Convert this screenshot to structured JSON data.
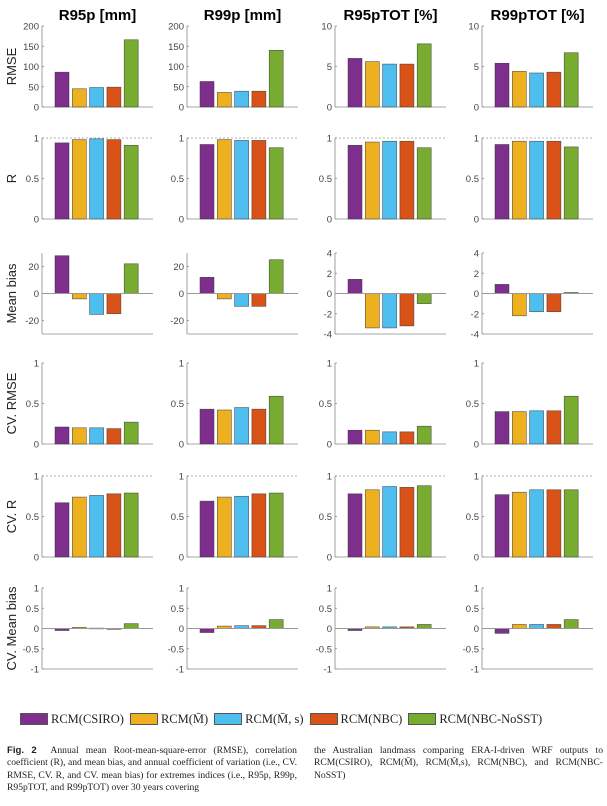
{
  "chart_data": {
    "type": "bar",
    "layout": "grid 6 rows x 4 columns",
    "columns": [
      "R95p [mm]",
      "R99p [mm]",
      "R95pTOT [%]",
      "R99pTOT [%]"
    ],
    "models": [
      "RCM(CSIRO)",
      "RCM(M̄)",
      "RCM(M̄, s)",
      "RCM(NBC)",
      "RCM(NBC-NoSST)"
    ],
    "colors": [
      "#7e2f8e",
      "#edb120",
      "#4dbeee",
      "#d95319",
      "#77ac30"
    ],
    "rows": [
      {
        "ylabel": "RMSE",
        "ylims": [
          [
            0,
            200
          ],
          [
            0,
            200
          ],
          [
            0,
            10
          ],
          [
            0,
            10
          ]
        ],
        "ticks": [
          [
            "0",
            "50",
            "100",
            "150",
            "200"
          ],
          [
            "0",
            "50",
            "100",
            "150",
            "200"
          ],
          [
            "0",
            "5",
            "10"
          ],
          [
            "0",
            "5",
            "10"
          ]
        ],
        "tick_values": [
          [
            0,
            50,
            100,
            150,
            200
          ],
          [
            0,
            50,
            100,
            150,
            200
          ],
          [
            0,
            5,
            10
          ],
          [
            0,
            5,
            10
          ]
        ],
        "ref_line": null,
        "values": [
          [
            86,
            45,
            48,
            49,
            166
          ],
          [
            63,
            36,
            39,
            39,
            140
          ],
          [
            6.0,
            5.6,
            5.3,
            5.3,
            7.8
          ],
          [
            5.4,
            4.4,
            4.2,
            4.3,
            6.7
          ]
        ]
      },
      {
        "ylabel": "R",
        "ylims": [
          [
            0,
            1
          ],
          [
            0,
            1
          ],
          [
            0,
            1
          ],
          [
            0,
            1
          ]
        ],
        "ticks": [
          [
            "0",
            "0.5",
            "1"
          ],
          [
            "0",
            "0.5",
            "1"
          ],
          [
            "0",
            "0.5",
            "1"
          ],
          [
            "0",
            "0.5",
            "1"
          ]
        ],
        "tick_values": [
          [
            0,
            0.5,
            1
          ],
          [
            0,
            0.5,
            1
          ],
          [
            0,
            0.5,
            1
          ],
          [
            0,
            0.5,
            1
          ]
        ],
        "ref_line": 1,
        "values": [
          [
            0.94,
            0.98,
            0.99,
            0.98,
            0.91
          ],
          [
            0.92,
            0.98,
            0.97,
            0.97,
            0.88
          ],
          [
            0.91,
            0.95,
            0.96,
            0.96,
            0.88
          ],
          [
            0.92,
            0.96,
            0.96,
            0.96,
            0.89
          ]
        ]
      },
      {
        "ylabel": "Mean bias",
        "ylims": [
          [
            -30,
            30
          ],
          [
            -30,
            30
          ],
          [
            -4,
            4
          ],
          [
            -4,
            4
          ]
        ],
        "ticks": [
          [
            "-20",
            "0",
            "20"
          ],
          [
            "-20",
            "0",
            "20"
          ],
          [
            "-4",
            "-2",
            "0",
            "2",
            "4"
          ],
          [
            "-4",
            "-2",
            "0",
            "2",
            "4"
          ]
        ],
        "tick_values": [
          [
            -20,
            0,
            20
          ],
          [
            -20,
            0,
            20
          ],
          [
            -4,
            -2,
            0,
            2,
            4
          ],
          [
            -4,
            -2,
            0,
            2,
            4
          ]
        ],
        "ref_line": null,
        "values": [
          [
            28,
            -4,
            -15.5,
            -15,
            22
          ],
          [
            12,
            -4,
            -9.5,
            -9.5,
            25
          ],
          [
            1.4,
            -3.4,
            -3.4,
            -3.2,
            -1.0
          ],
          [
            0.9,
            -2.2,
            -1.8,
            -1.8,
            0.1
          ]
        ]
      },
      {
        "ylabel": "CV. RMSE",
        "ylims": [
          [
            0,
            1
          ],
          [
            0,
            1
          ],
          [
            0,
            1
          ],
          [
            0,
            1
          ]
        ],
        "ticks": [
          [
            "0",
            "0.5",
            "1"
          ],
          [
            "0",
            "0.5",
            "1"
          ],
          [
            "0",
            "0.5",
            "1"
          ],
          [
            "0",
            "0.5",
            "1"
          ]
        ],
        "tick_values": [
          [
            0,
            0.5,
            1
          ],
          [
            0,
            0.5,
            1
          ],
          [
            0,
            0.5,
            1
          ],
          [
            0,
            0.5,
            1
          ]
        ],
        "ref_line": null,
        "values": [
          [
            0.21,
            0.2,
            0.2,
            0.19,
            0.27
          ],
          [
            0.43,
            0.42,
            0.45,
            0.43,
            0.59
          ],
          [
            0.17,
            0.17,
            0.15,
            0.15,
            0.22
          ],
          [
            0.4,
            0.4,
            0.41,
            0.41,
            0.59
          ]
        ]
      },
      {
        "ylabel": "CV. R",
        "ylims": [
          [
            0,
            1
          ],
          [
            0,
            1
          ],
          [
            0,
            1
          ],
          [
            0,
            1
          ]
        ],
        "ticks": [
          [
            "0",
            "0.5",
            "1"
          ],
          [
            "0",
            "0.5",
            "1"
          ],
          [
            "0",
            "0.5",
            "1"
          ],
          [
            "0",
            "0.5",
            "1"
          ]
        ],
        "tick_values": [
          [
            0,
            0.5,
            1
          ],
          [
            0,
            0.5,
            1
          ],
          [
            0,
            0.5,
            1
          ],
          [
            0,
            0.5,
            1
          ]
        ],
        "ref_line": 1,
        "values": [
          [
            0.67,
            0.74,
            0.76,
            0.78,
            0.79
          ],
          [
            0.69,
            0.74,
            0.75,
            0.78,
            0.79
          ],
          [
            0.78,
            0.83,
            0.87,
            0.86,
            0.88
          ],
          [
            0.77,
            0.8,
            0.83,
            0.83,
            0.83
          ]
        ]
      },
      {
        "ylabel": "CV. Mean bias",
        "ylims": [
          [
            -1,
            1
          ],
          [
            -1,
            1
          ],
          [
            -1,
            1
          ],
          [
            -1,
            1
          ]
        ],
        "ticks": [
          [
            "-1",
            "-0.5",
            "0",
            "0.5",
            "1"
          ],
          [
            "-1",
            "-0.5",
            "0",
            "0.5",
            "1"
          ],
          [
            "-1",
            "-0.5",
            "0",
            "0.5",
            "1"
          ],
          [
            "-1",
            "-0.5",
            "0",
            "0.5",
            "1"
          ]
        ],
        "tick_values": [
          [
            -1,
            -0.5,
            0,
            0.5,
            1
          ],
          [
            -1,
            -0.5,
            0,
            0.5,
            1
          ],
          [
            -1,
            -0.5,
            0,
            0.5,
            1
          ],
          [
            -1,
            -0.5,
            0,
            0.5,
            1
          ]
        ],
        "ref_line": null,
        "values": [
          [
            -0.05,
            0.03,
            0.01,
            -0.01,
            0.12
          ],
          [
            -0.1,
            0.06,
            0.07,
            0.07,
            0.22
          ],
          [
            -0.05,
            0.04,
            0.04,
            0.04,
            0.1
          ],
          [
            -0.12,
            0.1,
            0.1,
            0.1,
            0.22
          ]
        ]
      }
    ]
  },
  "legend": {
    "items": [
      {
        "label": "RCM(CSIRO)",
        "color": "#7e2f8e"
      },
      {
        "label": "RCM(M̄)",
        "color": "#edb120"
      },
      {
        "label": "RCM(M̄, s)",
        "color": "#4dbeee"
      },
      {
        "label": "RCM(NBC)",
        "color": "#d95319"
      },
      {
        "label": "RCM(NBC-NoSST)",
        "color": "#77ac30"
      }
    ]
  },
  "caption": {
    "figure_label": "Fig. 2",
    "left_text": "Annual mean Root-mean-square-error (RMSE), correlation coefficient (R), and mean bias, and annual coefficient of variation (i.e., CV. RMSE, CV. R, and CV. mean bias) for extremes indices (i.e., R95p, R99p, R95pTOT, and R99pTOT) over 30 years covering",
    "right_text": "the Australian landmass comparing ERA-I-driven WRF outputs to RCM(CSIRO), RCM(M̄), RCM(M̄,s), RCM(NBC), and RCM(NBC-NoSST)"
  }
}
